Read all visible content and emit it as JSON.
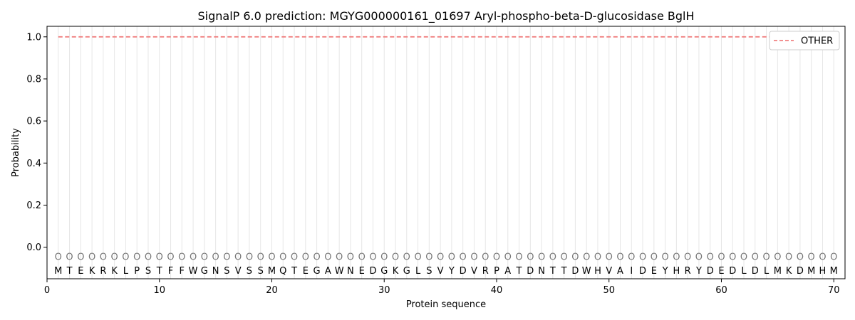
{
  "chart_data": {
    "type": "line",
    "title": "SignalP 6.0 prediction: MGYG000000161_01697 Aryl-phospho-beta-D-glucosidase BglH",
    "xlabel": "Protein sequence",
    "ylabel": "Probability",
    "xlim": [
      0,
      71
    ],
    "ylim": [
      -0.15,
      1.05
    ],
    "x_ticks": [
      0,
      10,
      20,
      30,
      40,
      50,
      60,
      70
    ],
    "y_ticks": [
      0.0,
      0.2,
      0.4,
      0.6,
      0.8,
      1.0
    ],
    "y_tick_labels": [
      "0.0",
      "0.2",
      "0.4",
      "0.6",
      "0.8",
      "1.0"
    ],
    "sequence": [
      "M",
      "T",
      "E",
      "K",
      "R",
      "K",
      "L",
      "P",
      "S",
      "T",
      "F",
      "F",
      "W",
      "G",
      "N",
      "S",
      "V",
      "S",
      "S",
      "M",
      "Q",
      "T",
      "E",
      "G",
      "A",
      "W",
      "N",
      "E",
      "D",
      "G",
      "K",
      "G",
      "L",
      "S",
      "V",
      "Y",
      "D",
      "V",
      "R",
      "P",
      "A",
      "T",
      "D",
      "N",
      "T",
      "T",
      "D",
      "W",
      "H",
      "V",
      "A",
      "I",
      "D",
      "E",
      "Y",
      "H",
      "R",
      "Y",
      "D",
      "E",
      "D",
      "L",
      "D",
      "L",
      "M",
      "K",
      "D",
      "M",
      "H",
      "M"
    ],
    "region_labels": [
      "O",
      "O",
      "O",
      "O",
      "O",
      "O",
      "O",
      "O",
      "O",
      "O",
      "O",
      "O",
      "O",
      "O",
      "O",
      "O",
      "O",
      "O",
      "O",
      "O",
      "O",
      "O",
      "O",
      "O",
      "O",
      "O",
      "O",
      "O",
      "O",
      "O",
      "O",
      "O",
      "O",
      "O",
      "O",
      "O",
      "O",
      "O",
      "O",
      "O",
      "O",
      "O",
      "O",
      "O",
      "O",
      "O",
      "O",
      "O",
      "O",
      "O",
      "O",
      "O",
      "O",
      "O",
      "O",
      "O",
      "O",
      "O",
      "O",
      "O",
      "O",
      "O",
      "O",
      "O",
      "O",
      "O",
      "O",
      "O",
      "O",
      "O"
    ],
    "series": [
      {
        "name": "OTHER",
        "color": "#f08080",
        "style": "dashed",
        "x_start": 1,
        "x_end": 70,
        "value": 1.0
      }
    ],
    "legend_position": "top-right",
    "grid": "vertical lines at each residue position"
  }
}
